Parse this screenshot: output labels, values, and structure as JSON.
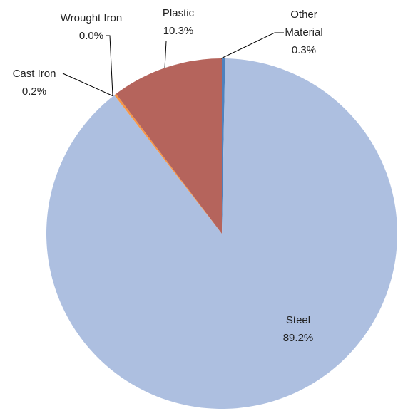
{
  "chart_data": {
    "type": "pie",
    "categories": [
      "Other Material",
      "Steel",
      "Cast Iron",
      "Wrought Iron",
      "Plastic"
    ],
    "values": [
      0.3,
      89.2,
      0.2,
      0.0,
      10.3
    ],
    "value_labels": [
      "0.3%",
      "89.2%",
      "0.2%",
      "0.0%",
      "10.3%"
    ],
    "colors": [
      "#4f81bd",
      "#adbfe0",
      "#f79646",
      "#9bbb59",
      "#b5645c"
    ]
  }
}
